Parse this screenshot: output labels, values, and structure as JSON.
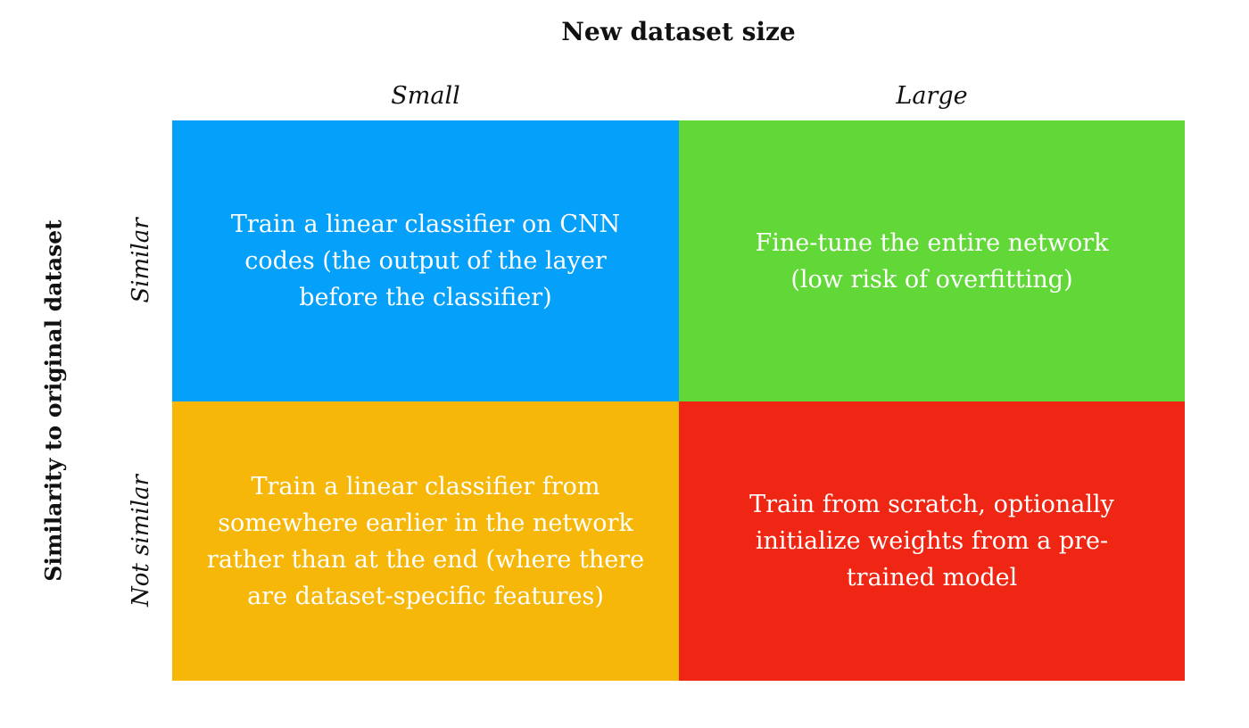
{
  "axis": {
    "x_title": "New dataset size",
    "y_title": "Similarity to original dataset",
    "columns": [
      "Small",
      "Large"
    ],
    "rows": [
      "Similar",
      "Not similar"
    ]
  },
  "cells": {
    "similar_small": "Train a linear classifier on CNN codes (the output of the layer before the classifier)",
    "similar_large": "Fine-tune the entire network (low risk of overfitting)",
    "notsimilar_small": "Train a linear classifier from somewhere earlier in the network rather than at the end (where there are dataset-specific features)",
    "notsimilar_large": "Train from scratch, optionally initialize weights from a pre-trained model"
  },
  "colors": {
    "similar_small": "#05A0FA",
    "similar_large": "#62D838",
    "notsimilar_small": "#F7B708",
    "notsimilar_large": "#EF2613"
  }
}
